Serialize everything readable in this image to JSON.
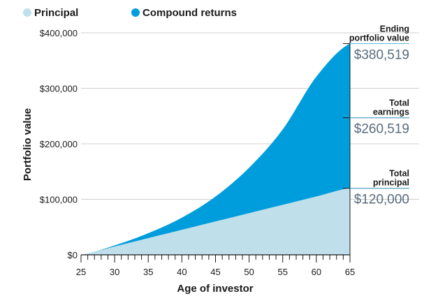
{
  "chart_data": {
    "type": "area",
    "stacked": true,
    "xlabel": "Age of investor",
    "ylabel": "Portfolio value",
    "xlim": [
      25,
      65
    ],
    "ylim": [
      0,
      400000
    ],
    "x_ticks": [
      25,
      30,
      35,
      40,
      45,
      50,
      55,
      60,
      65
    ],
    "x_tick_labels": [
      "25",
      "30",
      "35",
      "40",
      "45",
      "50",
      "55",
      "60",
      "65"
    ],
    "y_ticks": [
      0,
      100000,
      200000,
      300000,
      400000
    ],
    "y_tick_labels": [
      "$0",
      "$100,000",
      "$200,000",
      "$300,000",
      "$400,000"
    ],
    "grid": "horizontal",
    "legend": {
      "placement": "top-left",
      "entries": [
        "Principal",
        "Compound returns"
      ]
    },
    "x": [
      25,
      30,
      35,
      40,
      45,
      50,
      55,
      60,
      65
    ],
    "series": [
      {
        "name": "Principal",
        "color": "#bfe0ea",
        "values": [
          0,
          15000,
          30000,
          45000,
          60000,
          75000,
          90000,
          105000,
          120000
        ]
      },
      {
        "name": "Compound returns",
        "color": "#009ddc",
        "values": [
          0,
          2000,
          9000,
          22000,
          45000,
          82000,
          136000,
          216000,
          260519
        ]
      }
    ],
    "annotations": [
      {
        "label_lines": [
          "Ending",
          "portfolio value"
        ],
        "value": "$380,519",
        "y": 380519
      },
      {
        "label_lines": [
          "Total",
          "earnings"
        ],
        "value": "$260,519",
        "y": 247000
      },
      {
        "label_lines": [
          "Total",
          "principal"
        ],
        "value": "$120,000",
        "y": 120000
      }
    ]
  }
}
